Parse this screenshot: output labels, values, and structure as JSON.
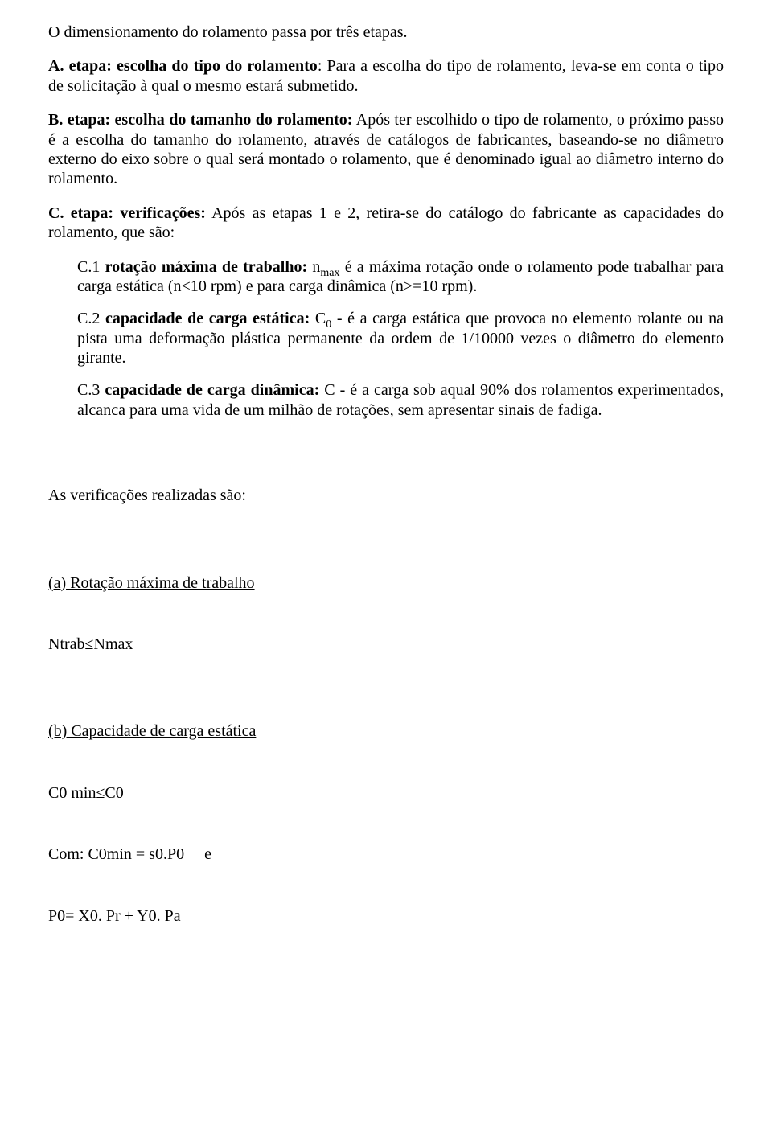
{
  "intro": "O dimensionamento do rolamento passa por três etapas.",
  "etapaA": {
    "lead": "A. etapa: escolha do tipo do rolamento",
    "rest": ": Para a escolha do tipo de rolamento, leva-se em conta o tipo de solicitação à qual o mesmo estará submetido."
  },
  "etapaB": {
    "lead": "B. etapa: escolha do tamanho do rolamento:",
    "rest": " Após ter escolhido o tipo de rolamento, o próximo passo é a escolha do tamanho do rolamento, através de catálogos de fabricantes, baseando-se no diâmetro externo do eixo sobre o qual será montado o rolamento, que é denominado igual ao diâmetro interno do rolamento."
  },
  "etapaC": {
    "lead": "C. etapa: verificações:",
    "rest": " Após as etapas 1 e 2, retira-se do catálogo do fabricante as capacidades do rolamento, que são:"
  },
  "c1": {
    "prefix": "C.1 ",
    "bold": "rotação máxima de trabalho:",
    "n": " n",
    "sub": "max",
    "rest": " é a máxima rotação onde o rolamento pode trabalhar para carga estática (n<10 rpm) e para carga dinâmica (n>=10 rpm)."
  },
  "c2": {
    "prefix": "C.2 ",
    "bold": "capacidade de carga estática:",
    "c": " C",
    "sub": "0",
    "rest": " - é a carga estática que provoca no elemento rolante ou na pista uma deformação plástica permanente da ordem de 1/10000 vezes o diâmetro do elemento girante."
  },
  "c3": {
    "prefix": "C.3 ",
    "bold": "capacidade de carga dinâmica:",
    "rest": " C - é a carga sob aqual 90% dos rolamentos experimentados, alcanca para uma vida de um milhão de rotações, sem apresentar sinais de fadiga."
  },
  "verifHeader": "As verificações realizadas são:",
  "a": {
    "label": "(a) Rotação máxima de trabalho",
    "formula": "Ntrab≤Nmax"
  },
  "b": {
    "label": "(b) Capacidade de carga estática",
    "formula": "C0 min≤C0",
    "com": "Com: C0min = s0.P0     e",
    "p0": "P0= X0. Pr + Y0. Pa"
  }
}
